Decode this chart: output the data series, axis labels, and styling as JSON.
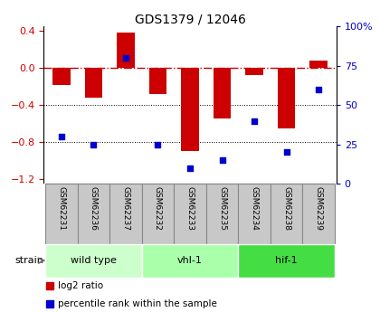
{
  "title": "GDS1379 / 12046",
  "samples": [
    "GSM62231",
    "GSM62236",
    "GSM62237",
    "GSM62232",
    "GSM62233",
    "GSM62235",
    "GSM62234",
    "GSM62238",
    "GSM62239"
  ],
  "log2_ratio": [
    -0.18,
    -0.32,
    0.38,
    -0.28,
    -0.9,
    -0.55,
    -0.08,
    -0.65,
    0.08
  ],
  "percentile_rank": [
    30,
    25,
    80,
    25,
    10,
    15,
    40,
    20,
    60
  ],
  "groups": [
    {
      "label": "wild type",
      "start": 0,
      "end": 3,
      "color": "#ccffcc"
    },
    {
      "label": "vhl-1",
      "start": 3,
      "end": 6,
      "color": "#aaffaa"
    },
    {
      "label": "hif-1",
      "start": 6,
      "end": 9,
      "color": "#44dd44"
    }
  ],
  "ylim_left": [
    -1.25,
    0.45
  ],
  "ylim_right": [
    0,
    100
  ],
  "yticks_left": [
    -1.2,
    -0.8,
    -0.4,
    0.0,
    0.4
  ],
  "yticks_right": [
    0,
    25,
    50,
    75,
    100
  ],
  "ytick_labels_right": [
    "0",
    "25",
    "50",
    "75",
    "100%"
  ],
  "bar_color": "#cc0000",
  "dot_color": "#0000cc",
  "zero_line_color": "#cc0000",
  "grid_line_color": "#000000",
  "background_color": "#ffffff",
  "plot_bg_color": "#ffffff",
  "strain_label": "strain",
  "legend_bar": "log2 ratio",
  "legend_dot": "percentile rank within the sample",
  "sample_box_color": "#c8c8c8",
  "sample_box_edge": "#888888"
}
